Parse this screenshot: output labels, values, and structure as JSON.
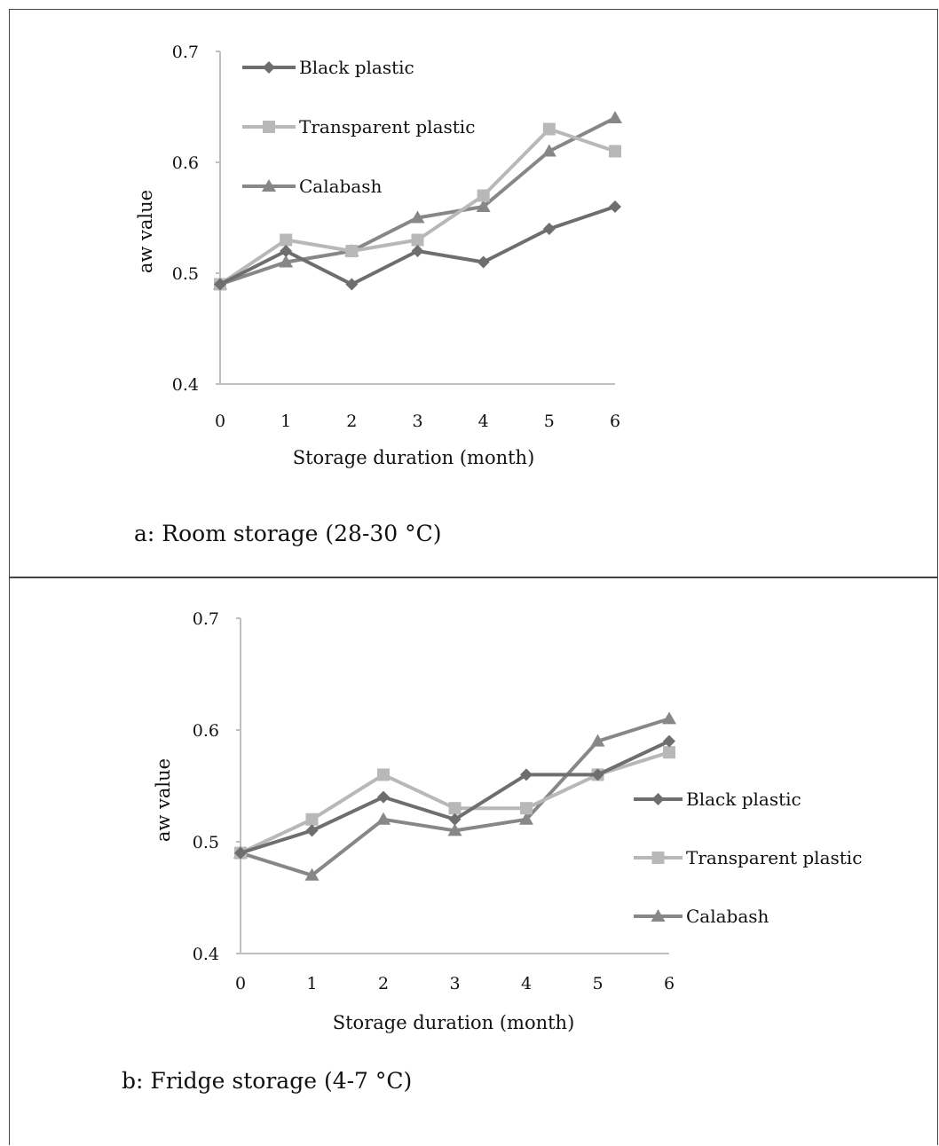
{
  "colors": {
    "black_plastic": "#6e6e6e",
    "transparent_plastic": "#b8b8b8",
    "calabash": "#878787",
    "axis": "#bfbfbf",
    "text": "#111111"
  },
  "chart_data": [
    {
      "type": "line",
      "caption": "a: Room storage (28-30 °C)",
      "xlabel": "Storage duration (month)",
      "ylabel": "aw value",
      "x": [
        0,
        1,
        2,
        3,
        4,
        5,
        6
      ],
      "xticks": [
        "0",
        "1",
        "2",
        "3",
        "4",
        "5",
        "6"
      ],
      "yticks": [
        "0.4",
        "0.5",
        "0.6",
        "0.7"
      ],
      "ylim": [
        0.4,
        0.7
      ],
      "grid": false,
      "legend": "top-left",
      "series": [
        {
          "name": "Black plastic",
          "marker": "diamond",
          "color_key": "black_plastic",
          "values": [
            0.49,
            0.52,
            0.49,
            0.52,
            0.51,
            0.54,
            0.56
          ]
        },
        {
          "name": "Transparent plastic",
          "marker": "square",
          "color_key": "transparent_plastic",
          "values": [
            0.49,
            0.53,
            0.52,
            0.53,
            0.57,
            0.63,
            0.61
          ]
        },
        {
          "name": "Calabash",
          "marker": "triangle",
          "color_key": "calabash",
          "values": [
            0.49,
            0.51,
            0.52,
            0.55,
            0.56,
            0.61,
            0.64
          ]
        }
      ]
    },
    {
      "type": "line",
      "caption": "b: Fridge storage (4-7 °C)",
      "xlabel": "Storage duration (month)",
      "ylabel": "aw value",
      "x": [
        0,
        1,
        2,
        3,
        4,
        5,
        6
      ],
      "xticks": [
        "0",
        "1",
        "2",
        "3",
        "4",
        "5",
        "6"
      ],
      "yticks": [
        "0.4",
        "0.5",
        "0.6",
        "0.7"
      ],
      "ylim": [
        0.4,
        0.7
      ],
      "grid": false,
      "legend": "right",
      "series": [
        {
          "name": "Black plastic",
          "marker": "diamond",
          "color_key": "black_plastic",
          "values": [
            0.49,
            0.51,
            0.54,
            0.52,
            0.56,
            0.56,
            0.59
          ]
        },
        {
          "name": "Transparent plastic",
          "marker": "square",
          "color_key": "transparent_plastic",
          "values": [
            0.49,
            0.52,
            0.56,
            0.53,
            0.53,
            0.56,
            0.58
          ]
        },
        {
          "name": "Calabash",
          "marker": "triangle",
          "color_key": "calabash",
          "values": [
            0.49,
            0.47,
            0.52,
            0.51,
            0.52,
            0.59,
            0.61
          ]
        }
      ]
    }
  ]
}
